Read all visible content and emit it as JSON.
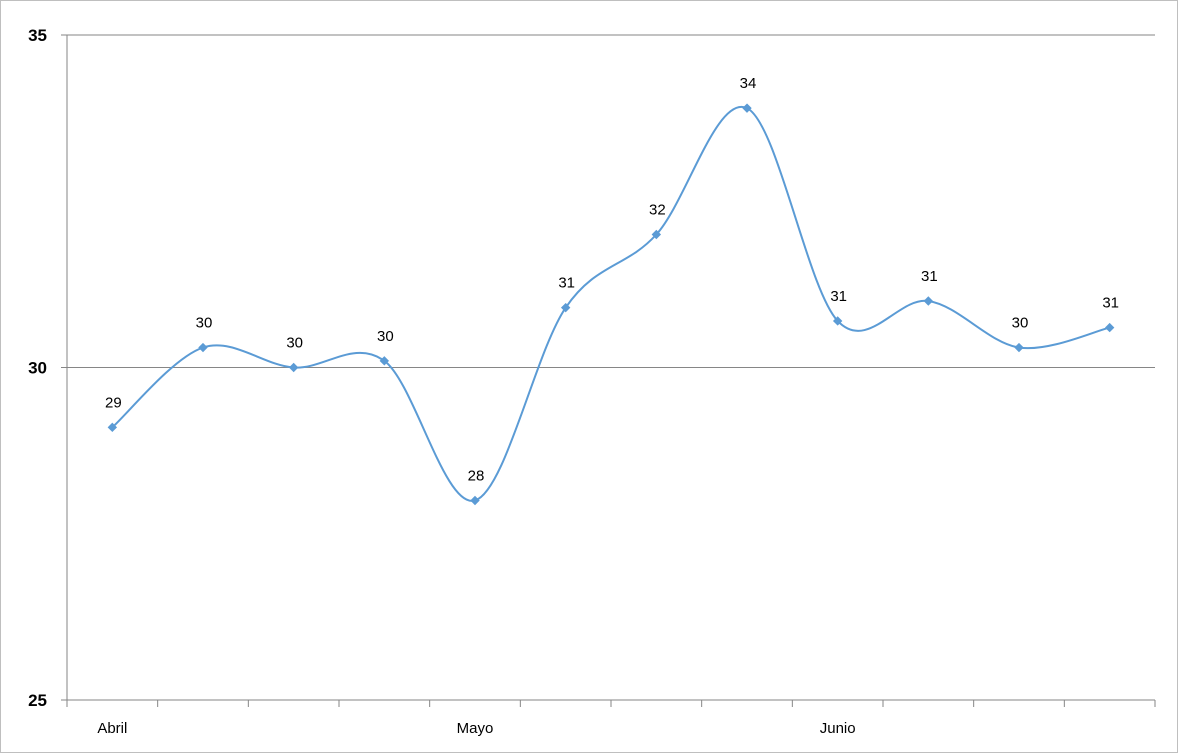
{
  "chart_data": {
    "type": "line",
    "smooth": true,
    "title": "",
    "xlabel": "",
    "ylabel": "",
    "x_tick_labels": [
      "Abril",
      "Mayo",
      "Junio"
    ],
    "x_tick_label_positions": [
      0,
      4,
      8
    ],
    "ylim": [
      25,
      35
    ],
    "y_ticks": [
      25,
      30,
      35
    ],
    "grid": "horizontal major",
    "legend": "none",
    "series": [
      {
        "values": [
          29.1,
          30.3,
          30.0,
          30.1,
          28.0,
          30.9,
          32.0,
          33.9,
          30.7,
          31.0,
          30.3,
          30.6
        ],
        "data_labels": [
          "29",
          "30",
          "30",
          "30",
          "28",
          "31",
          "32",
          "34",
          "31",
          "31",
          "30",
          "31"
        ],
        "color": "#5b9bd5"
      }
    ]
  }
}
